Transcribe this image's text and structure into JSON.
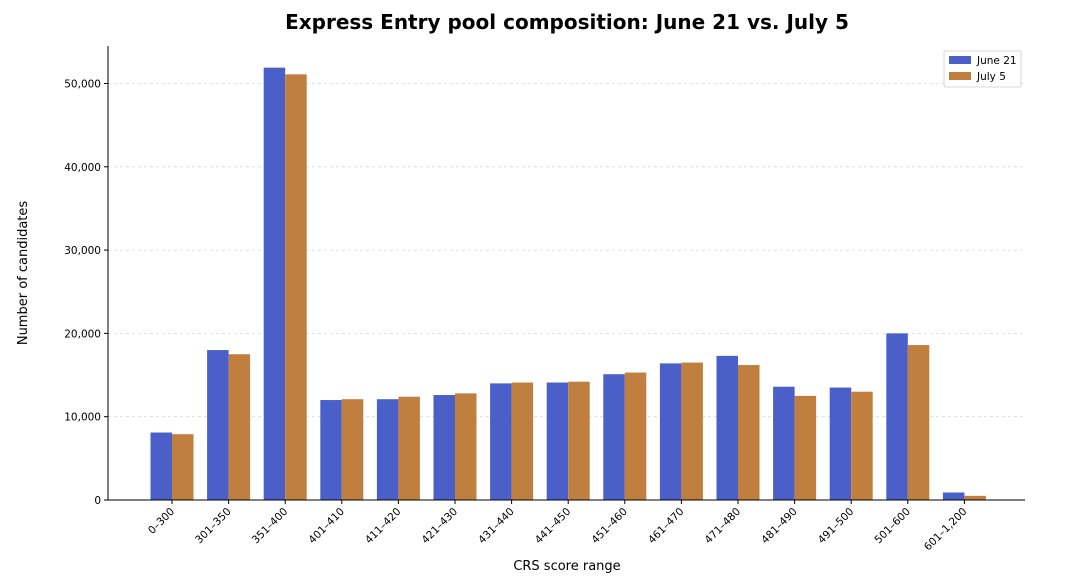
{
  "chart_data": {
    "type": "bar",
    "title": "Express Entry pool composition: June 21 vs. July 5",
    "xlabel": "CRS score range",
    "ylabel": "Number of candidates",
    "ylim": [
      0,
      54500
    ],
    "yticks": [
      0,
      10000,
      20000,
      30000,
      40000,
      50000
    ],
    "ytick_labels": [
      "0",
      "10,000",
      "20,000",
      "30,000",
      "40,000",
      "50,000"
    ],
    "grid": "horizontal dashed",
    "legend_position": "top-right",
    "categories": [
      "0–300",
      "301–350",
      "351–400",
      "401–410",
      "411–420",
      "421–430",
      "431–440",
      "441–450",
      "451–460",
      "461–470",
      "471–480",
      "481–490",
      "491–500",
      "501–600",
      "601–1,200"
    ],
    "series": [
      {
        "name": "June 21",
        "color": "#4a5fc7",
        "values": [
          8100,
          18000,
          51900,
          12000,
          12100,
          12600,
          14000,
          14100,
          15100,
          16400,
          17300,
          13600,
          13500,
          20000,
          900
        ]
      },
      {
        "name": "July 5",
        "color": "#c07f3e",
        "values": [
          7900,
          17500,
          51100,
          12100,
          12400,
          12800,
          14100,
          14200,
          15300,
          16500,
          16200,
          12500,
          13000,
          18600,
          500
        ]
      }
    ]
  }
}
